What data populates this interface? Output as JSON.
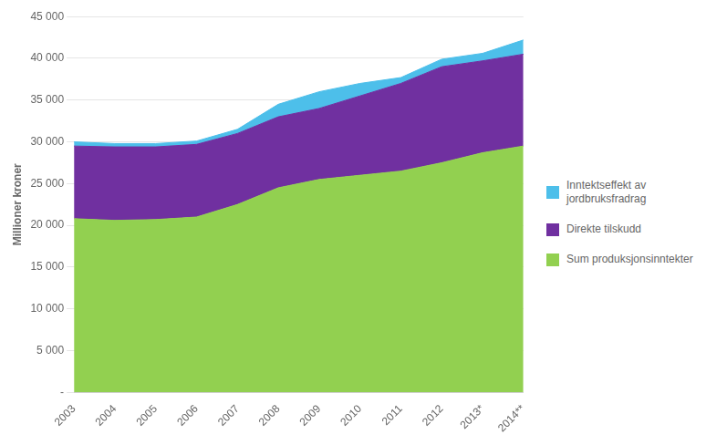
{
  "chart_data": {
    "type": "area",
    "stacked": true,
    "categories": [
      "2003",
      "2004",
      "2005",
      "2006",
      "2007",
      "2008",
      "2009",
      "2010",
      "2011",
      "2012",
      "2013*",
      "2014**"
    ],
    "ylabel": "Millioner kroner",
    "ylim": [
      0,
      45000
    ],
    "yticks": [
      {
        "value": 0,
        "label": "-"
      },
      {
        "value": 5000,
        "label": "5 000"
      },
      {
        "value": 10000,
        "label": "10 000"
      },
      {
        "value": 15000,
        "label": "15 000"
      },
      {
        "value": 20000,
        "label": "20 000"
      },
      {
        "value": 25000,
        "label": "25 000"
      },
      {
        "value": 30000,
        "label": "30 000"
      },
      {
        "value": 35000,
        "label": "35 000"
      },
      {
        "value": 40000,
        "label": "40 000"
      },
      {
        "value": 45000,
        "label": "45 000"
      }
    ],
    "grid": true,
    "legend": "right",
    "series": [
      {
        "name": "Sum produksjonsinntekter",
        "color": "#92D050",
        "values": [
          20800,
          20600,
          20700,
          21000,
          22500,
          24500,
          25500,
          26000,
          26500,
          27500,
          28700,
          29500
        ]
      },
      {
        "name": "Direkte tilskudd",
        "color": "#7030A0",
        "values": [
          8700,
          8800,
          8700,
          8700,
          8500,
          8500,
          8500,
          9500,
          10500,
          11500,
          11000,
          11000
        ]
      },
      {
        "name": "Inntektseffekt av\njordbruksfradrag",
        "color": "#4DBFEA",
        "values": [
          500,
          400,
          400,
          400,
          500,
          1500,
          2000,
          1500,
          700,
          900,
          900,
          1700
        ]
      }
    ]
  }
}
